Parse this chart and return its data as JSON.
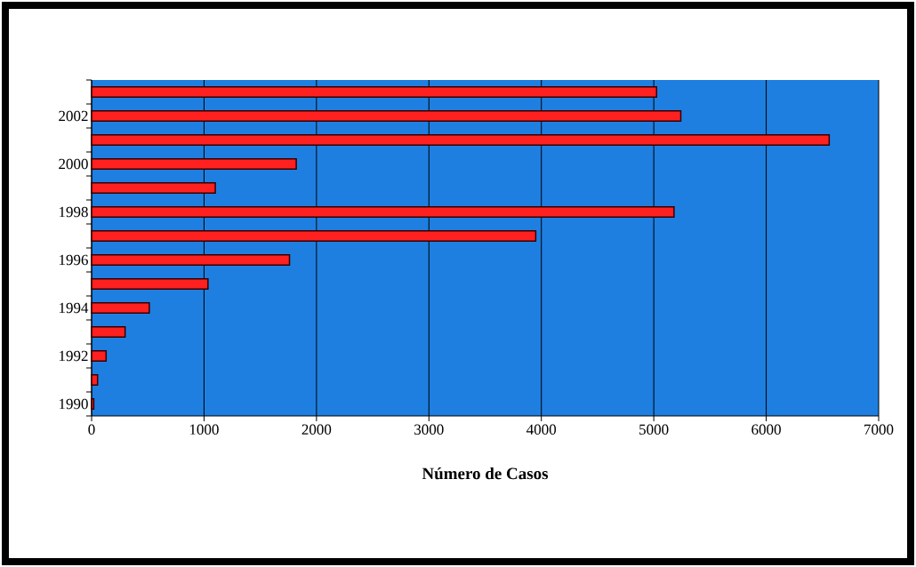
{
  "chart_data": {
    "type": "bar",
    "orientation": "horizontal",
    "xlabel": "Número de Casos",
    "categories": [
      null,
      "2002",
      null,
      "2000",
      null,
      "1998",
      null,
      "1996",
      null,
      "1994",
      null,
      "1992",
      null,
      "1990"
    ],
    "values": [
      5025,
      5240,
      6560,
      1820,
      1100,
      5180,
      3950,
      1760,
      1035,
      513,
      298,
      129,
      53,
      19
    ],
    "color": "#ff2020",
    "xlim": [
      0,
      7000
    ],
    "xticks": [
      0,
      1000,
      2000,
      3000,
      4000,
      5000,
      6000,
      7000
    ],
    "grid": "x"
  }
}
